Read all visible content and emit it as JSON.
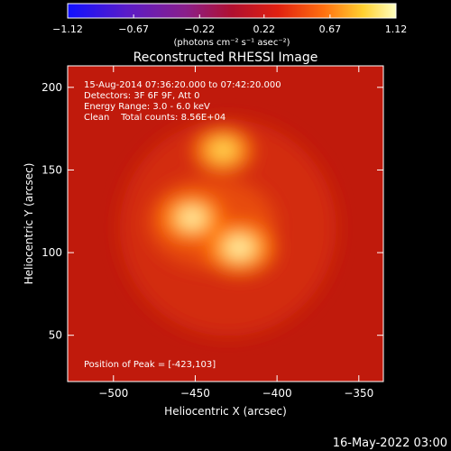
{
  "chart_data": {
    "type": "heatmap",
    "title": "Reconstructed RHESSI Image",
    "xlabel": "Heliocentric X (arcsec)",
    "ylabel": "Heliocentric Y (arcsec)",
    "xlim": [
      -528,
      -335
    ],
    "ylim": [
      22,
      213
    ],
    "xticks": [
      -500,
      -450,
      -400,
      -350
    ],
    "yticks": [
      50,
      100,
      150,
      200
    ],
    "colorbar": {
      "min": -1.12,
      "max": 1.12,
      "ticks": [
        "-1.12",
        "-0.67",
        "-0.22",
        "0.22",
        "0.67",
        "1.12"
      ],
      "units": "(photons cm⁻² s⁻¹ asec⁻²)",
      "colormap": "rainbow-to-hot"
    },
    "annotations": [
      "15-Aug-2014 07:36:20.000 to 07:42:20.000",
      "Detectors: 3F 6F 9F, Att 0",
      "Energy Range: 3.0 - 6.0 keV",
      "Clean    Total counts: 8.56E+04",
      "Position of Peak = [-423,103]"
    ],
    "peak": [
      -423,
      103
    ],
    "sources": [
      {
        "x": -423,
        "y": 103,
        "level": 1.0
      },
      {
        "x": -452,
        "y": 121,
        "level": 0.9
      },
      {
        "x": -433,
        "y": 162,
        "level": 0.7
      }
    ],
    "background_level": 0.45,
    "footer": "16-May-2022 03:00"
  }
}
